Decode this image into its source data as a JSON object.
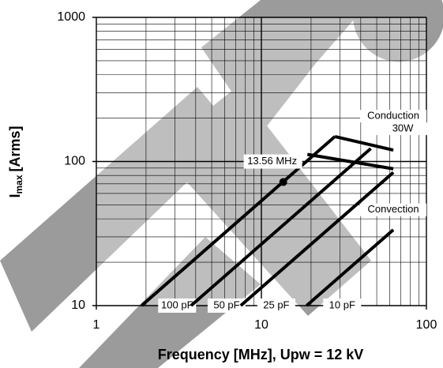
{
  "chart_data": {
    "type": "line",
    "x_label": "Frequency [MHz], Upw = 12 kV",
    "y_label": {
      "symbol": "I",
      "subscript": "max",
      "unit": "[Arms]"
    },
    "log_x": true,
    "log_y": true,
    "grid": true,
    "minor_grid": true,
    "xlim": [
      1,
      100
    ],
    "xticks": [
      1,
      10,
      100
    ],
    "ylim": [
      10,
      1000
    ],
    "yticks": [
      10,
      100,
      1000
    ],
    "series": [
      {
        "name": "100 pF",
        "color": "#000000",
        "x": [
          1.88,
          27.9
        ],
        "values": [
          10,
          149
        ]
      },
      {
        "name": "50 pF",
        "color": "#000000",
        "x": [
          3.75,
          46
        ],
        "values": [
          10,
          123
        ]
      },
      {
        "name": "25 pF",
        "color": "#000000",
        "x": [
          7.5,
          63
        ],
        "values": [
          10,
          84
        ]
      },
      {
        "name": "10 pF",
        "color": "#000000",
        "x": [
          18.8,
          63
        ],
        "values": [
          10,
          33.6
        ]
      }
    ],
    "limits": [
      {
        "label": [
          "Conduction",
          "30W"
        ],
        "color": "#000000",
        "x": [
          27.9,
          63
        ],
        "values": [
          149,
          120
        ]
      },
      {
        "label": [
          "Convection"
        ],
        "color": "#000000",
        "x": [
          19,
          63
        ],
        "values": [
          112,
          89
        ]
      }
    ],
    "point": {
      "label": "13.56 MHz",
      "x": 13.56,
      "y": 72,
      "color": "#000000"
    }
  }
}
